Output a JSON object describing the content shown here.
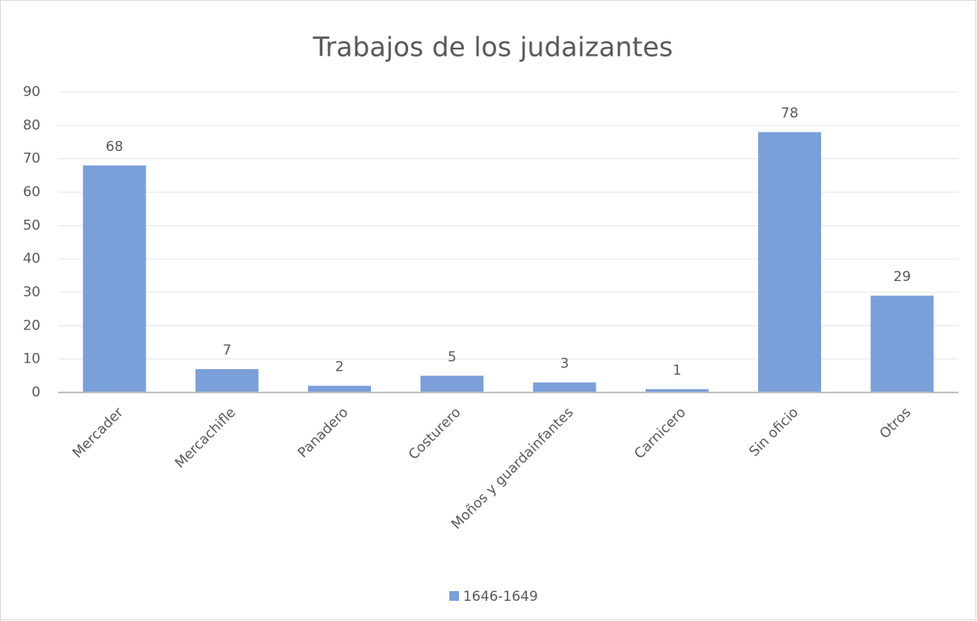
{
  "chart_data": {
    "type": "bar",
    "title": "Trabajos de los judaizantes",
    "categories": [
      "Mercader",
      "Mercachifle",
      "Panadero",
      "Costurero",
      "Moños y guardainfantes",
      "Carnicero",
      "Sin oficio",
      "Otros"
    ],
    "series": [
      {
        "name": "1646-1649",
        "color": "#7b9fd8",
        "values": [
          68,
          7,
          2,
          5,
          3,
          1,
          78,
          29
        ]
      }
    ],
    "ylim": [
      0,
      90
    ],
    "yticks": [
      0,
      10,
      20,
      30,
      40,
      50,
      60,
      70,
      80,
      90
    ],
    "grid": true,
    "legend": "bottom"
  }
}
